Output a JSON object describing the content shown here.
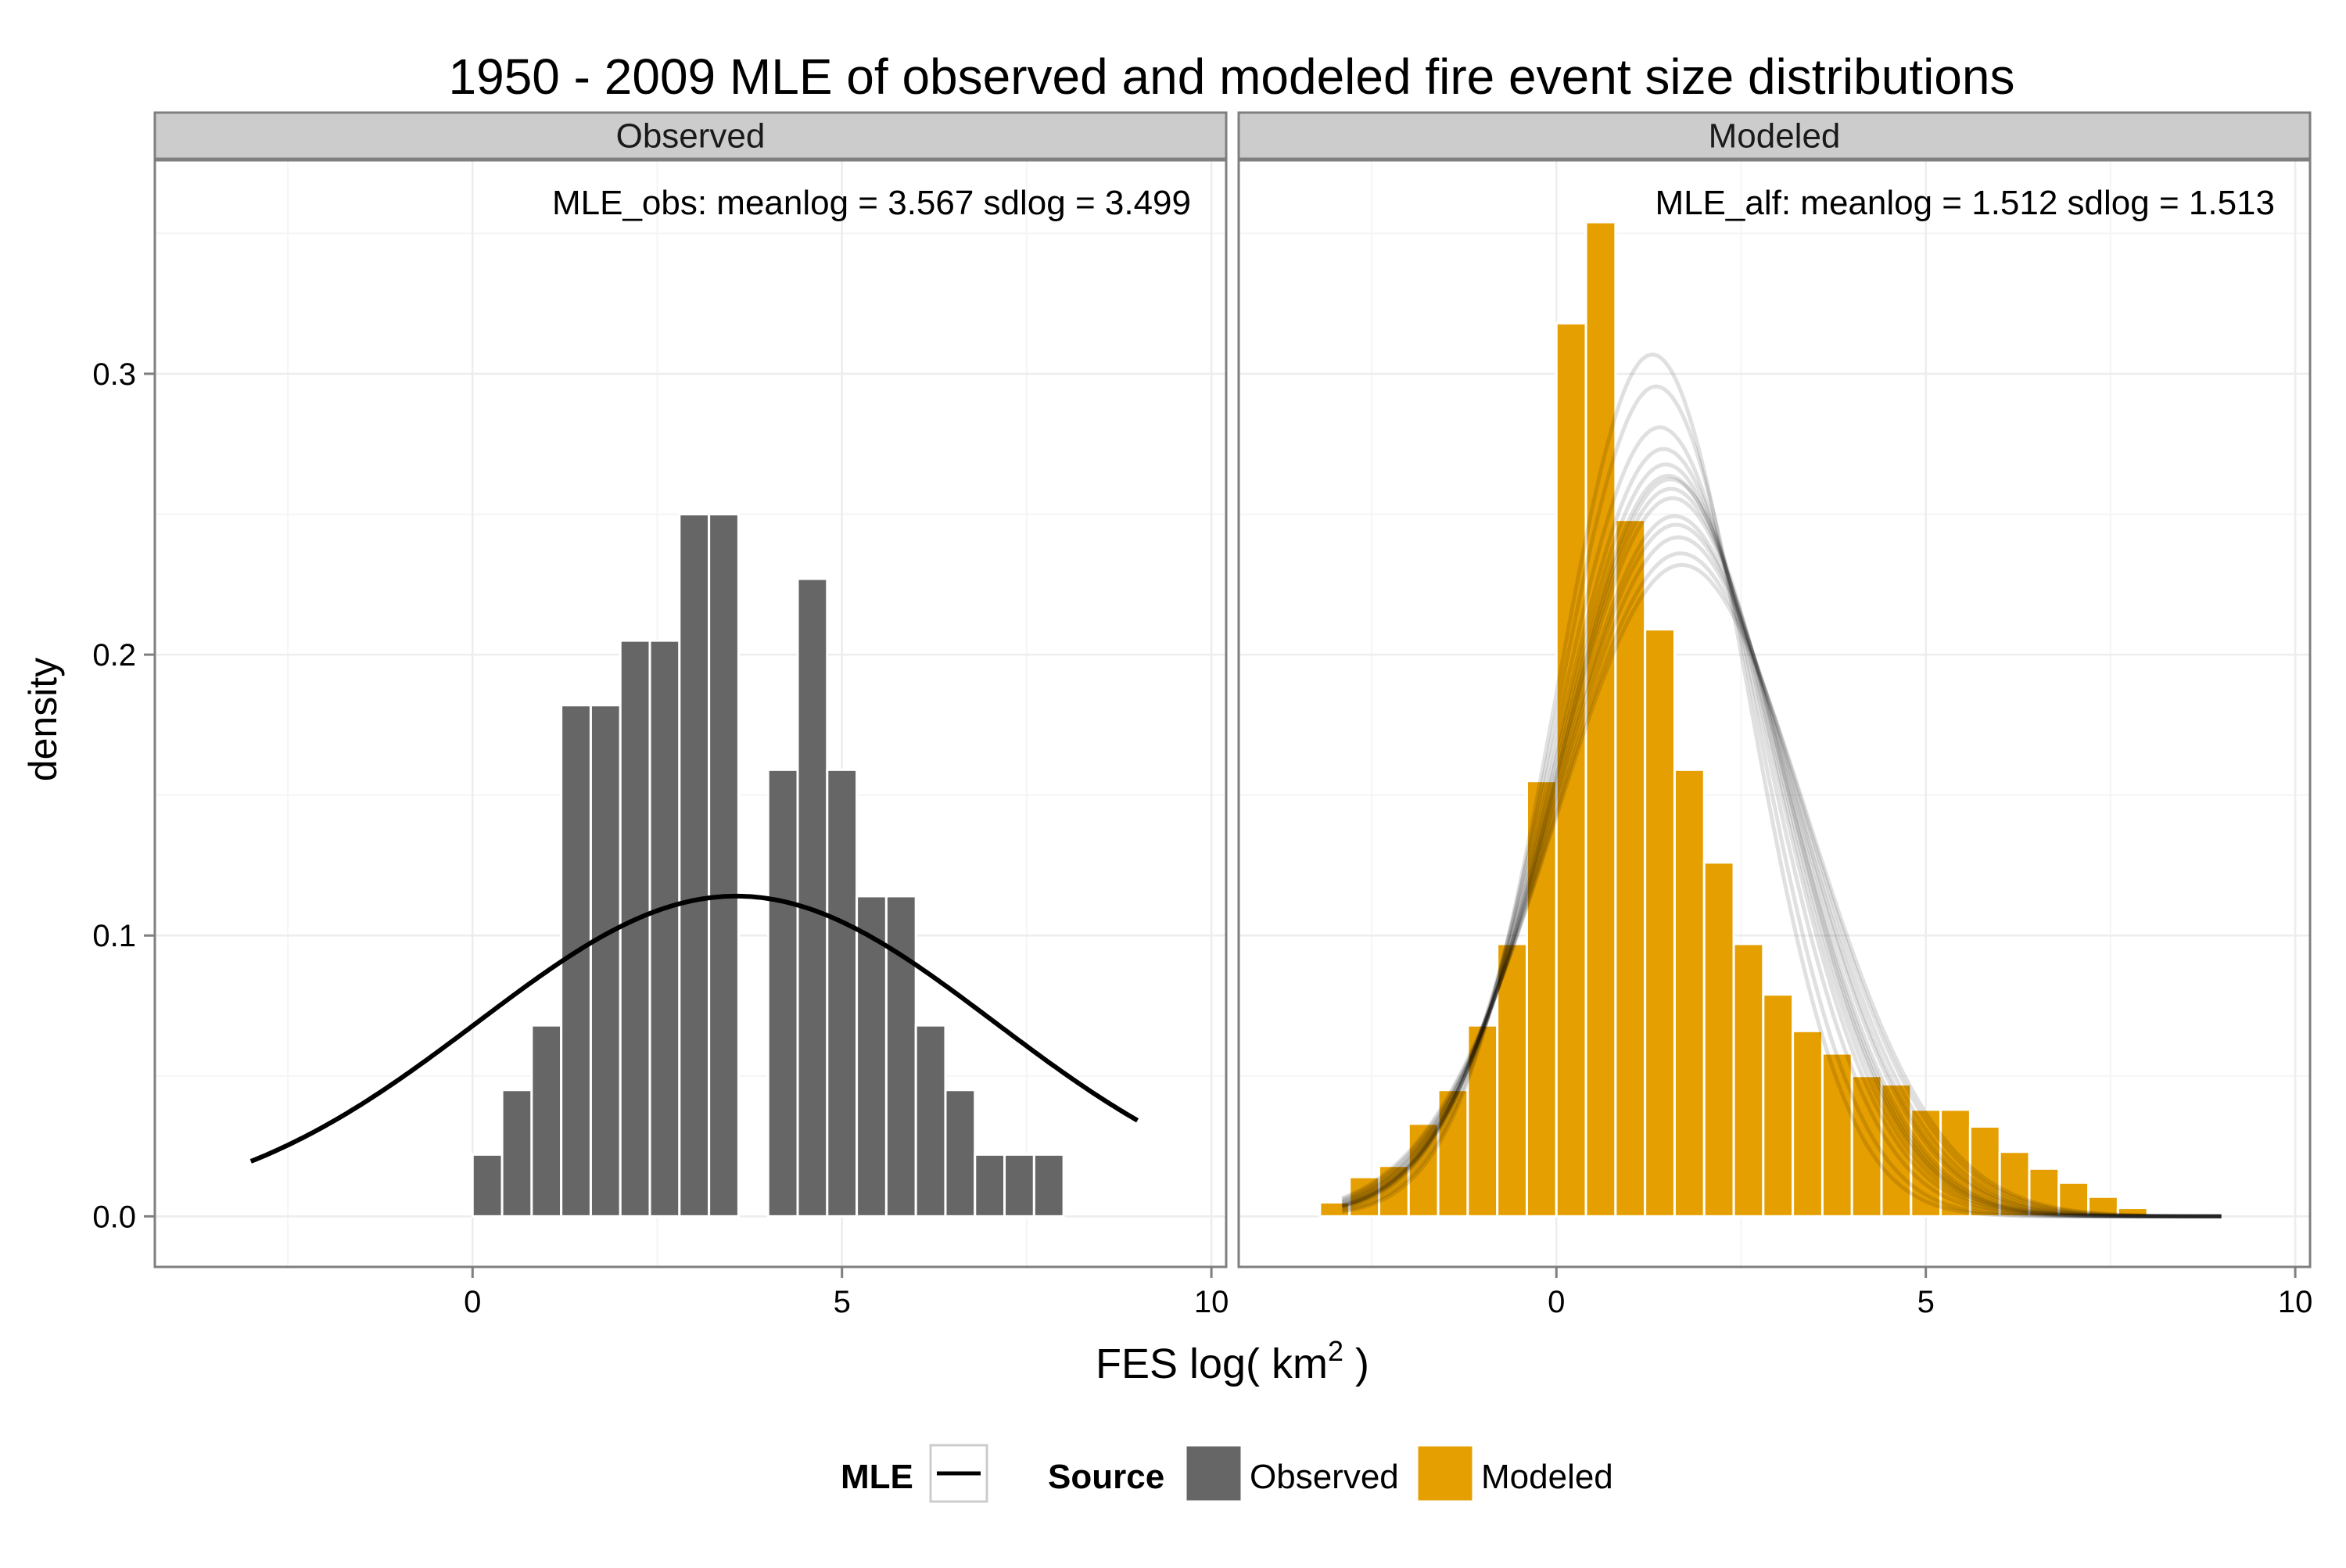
{
  "chart_data": {
    "type": "bar",
    "title": "1950 - 2009 MLE of observed and modeled fire event size distributions",
    "xlabel": "FES log( km",
    "xlabel_sup": "2",
    "xlabel_suffix": " )",
    "ylabel": "density",
    "xlim": [
      -4.3,
      10.2
    ],
    "ylim": [
      -0.018,
      0.376
    ],
    "xticks": [
      0,
      5,
      10
    ],
    "yticks": [
      0.0,
      0.1,
      0.2,
      0.3
    ],
    "ytick_labels": [
      "0.0",
      "0.1",
      "0.2",
      "0.3"
    ],
    "grid": true,
    "legend": {
      "position": "bottom",
      "mle_title": "MLE",
      "source_title": "Source",
      "items": [
        {
          "label": "Observed",
          "color": "#666666"
        },
        {
          "label": "Modeled",
          "color": "#E69F00"
        }
      ]
    },
    "colors": {
      "observed": "#666666",
      "modeled": "#E69F00",
      "strip": "#CCCCCC",
      "panel_border": "#7F7F7F",
      "grid": "#EDEDED"
    },
    "panels": [
      {
        "strip": "Observed",
        "annotation": "MLE_obs: meanlog = 3.567 sdlog = 3.499",
        "bins": {
          "start": 0,
          "width": 0.4,
          "values": [
            0.022,
            0.045,
            0.068,
            0.182,
            0.182,
            0.205,
            0.205,
            0.25,
            0.25,
            0.0,
            0.159,
            0.227,
            0.159,
            0.114,
            0.114,
            0.068,
            0.045,
            0.022,
            0.022,
            0.022
          ]
        },
        "mle_curves": [
          {
            "meanlog": 3.567,
            "sdlog": 3.499,
            "xmin": -3,
            "xmax": 9
          }
        ]
      },
      {
        "strip": "Modeled",
        "annotation": "MLE_alf: meanlog = 1.512 sdlog = 1.513",
        "bins": {
          "start": -3.2,
          "width": 0.4,
          "values": [
            0.005,
            0.014,
            0.018,
            0.033,
            0.045,
            0.068,
            0.097,
            0.155,
            0.318,
            0.354,
            0.248,
            0.209,
            0.159,
            0.126,
            0.097,
            0.079,
            0.066,
            0.058,
            0.05,
            0.047,
            0.038,
            0.038,
            0.032,
            0.023,
            0.017,
            0.012,
            0.007,
            0.003
          ]
        },
        "mle_curves": [
          {
            "meanlog": 1.3,
            "sdlog": 1.3,
            "xmin": -2.9,
            "xmax": 9
          },
          {
            "meanlog": 1.35,
            "sdlog": 1.35,
            "xmin": -2.9,
            "xmax": 9
          },
          {
            "meanlog": 1.4,
            "sdlog": 1.42,
            "xmin": -2.9,
            "xmax": 9
          },
          {
            "meanlog": 1.45,
            "sdlog": 1.46,
            "xmin": -2.9,
            "xmax": 9
          },
          {
            "meanlog": 1.48,
            "sdlog": 1.49,
            "xmin": -2.9,
            "xmax": 9
          },
          {
            "meanlog": 1.512,
            "sdlog": 1.513,
            "xmin": -2.9,
            "xmax": 9
          },
          {
            "meanlog": 1.54,
            "sdlog": 1.52,
            "xmin": -2.9,
            "xmax": 9
          },
          {
            "meanlog": 1.55,
            "sdlog": 1.54,
            "xmin": -2.9,
            "xmax": 9
          },
          {
            "meanlog": 1.57,
            "sdlog": 1.56,
            "xmin": -2.9,
            "xmax": 9
          },
          {
            "meanlog": 1.6,
            "sdlog": 1.6,
            "xmin": -2.9,
            "xmax": 9
          },
          {
            "meanlog": 1.62,
            "sdlog": 1.62,
            "xmin": -2.9,
            "xmax": 9
          },
          {
            "meanlog": 1.65,
            "sdlog": 1.65,
            "xmin": -2.9,
            "xmax": 9
          },
          {
            "meanlog": 1.68,
            "sdlog": 1.69,
            "xmin": -2.9,
            "xmax": 9
          },
          {
            "meanlog": 1.7,
            "sdlog": 1.72,
            "xmin": -2.9,
            "xmax": 9
          }
        ]
      }
    ]
  }
}
